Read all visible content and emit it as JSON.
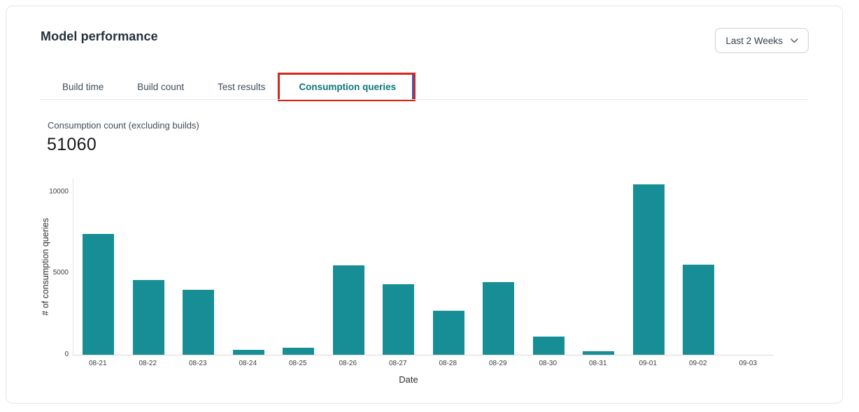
{
  "header": {
    "title": "Model performance"
  },
  "range_selector": {
    "label": "Last 2 Weeks",
    "icon": "chevron-down-icon"
  },
  "tabs": [
    {
      "label": "Build time",
      "active": false
    },
    {
      "label": "Build count",
      "active": false
    },
    {
      "label": "Test results",
      "active": false
    },
    {
      "label": "Consumption queries",
      "active": true,
      "annotated": true
    }
  ],
  "metric": {
    "label": "Consumption count (excluding builds)",
    "value": "51060"
  },
  "chart_data": {
    "type": "bar",
    "title": "",
    "categories": [
      "08-21",
      "08-22",
      "08-23",
      "08-24",
      "08-25",
      "08-26",
      "08-27",
      "08-28",
      "08-29",
      "08-30",
      "08-31",
      "09-01",
      "09-02",
      "09-03"
    ],
    "values": [
      7400,
      4600,
      4000,
      300,
      430,
      5500,
      4350,
      2700,
      4450,
      1130,
      200,
      10450,
      5550,
      0
    ],
    "xlabel": "Date",
    "ylabel": "# of consumption queries",
    "ylim": [
      0,
      10800
    ],
    "yticks": [
      0,
      5000,
      10000
    ],
    "grid": false,
    "legend": "none",
    "bar_color": "#178e96"
  },
  "colors": {
    "accent_teal": "#0e7680",
    "bar_color": "#178e96",
    "annotation_red": "#d6281a",
    "annotation_blue": "#1f63d6"
  }
}
